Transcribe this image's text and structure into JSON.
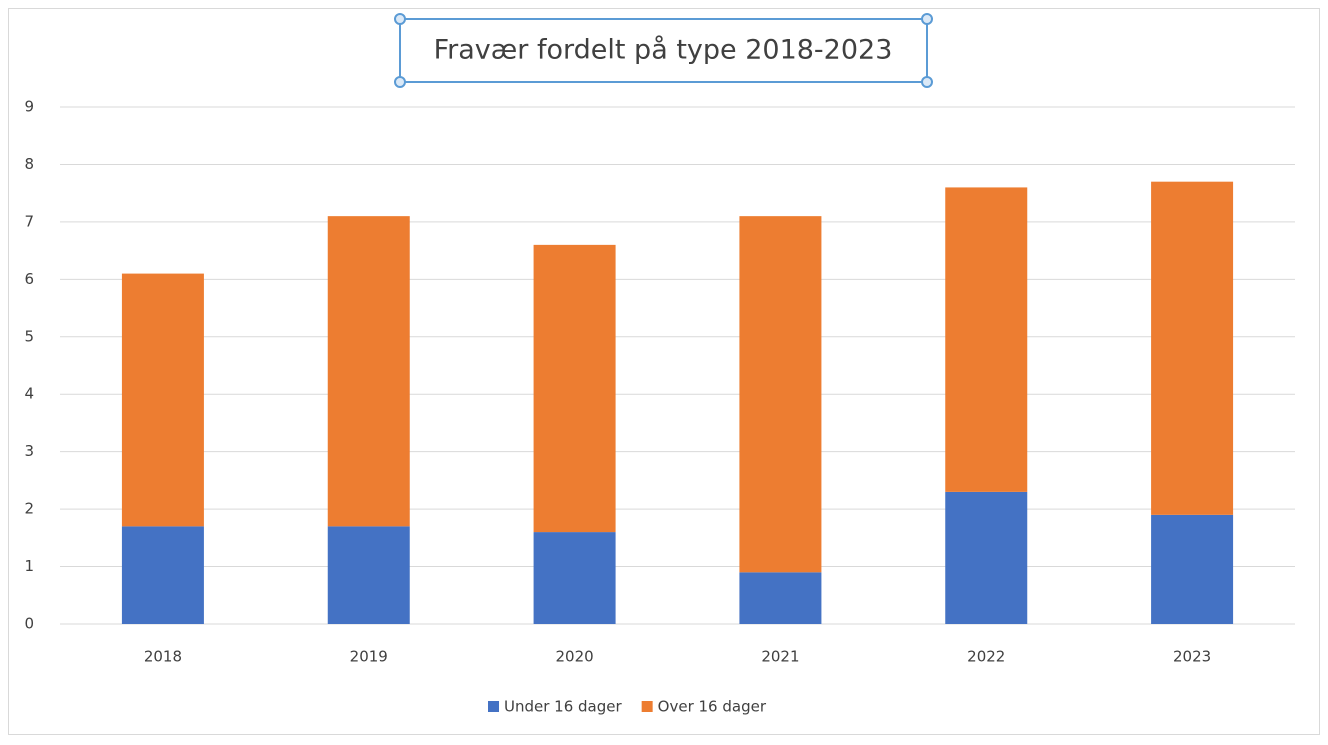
{
  "chart_data": {
    "type": "bar",
    "stacked": true,
    "title": "Fravær fordelt på type 2018-2023",
    "categories": [
      "2018",
      "2019",
      "2020",
      "2021",
      "2022",
      "2023"
    ],
    "series": [
      {
        "name": "Under 16 dager",
        "color": "#4472c4",
        "values": [
          1.7,
          1.7,
          1.6,
          0.9,
          2.3,
          1.9
        ]
      },
      {
        "name": "Over 16 dager",
        "color": "#ed7d31",
        "values": [
          4.4,
          5.4,
          5.0,
          6.2,
          5.3,
          5.8
        ]
      }
    ],
    "ylim": [
      0,
      9
    ],
    "yticks": [
      0,
      1,
      2,
      3,
      4,
      5,
      6,
      7,
      8,
      9
    ],
    "grid": true,
    "legend": "bottom"
  }
}
